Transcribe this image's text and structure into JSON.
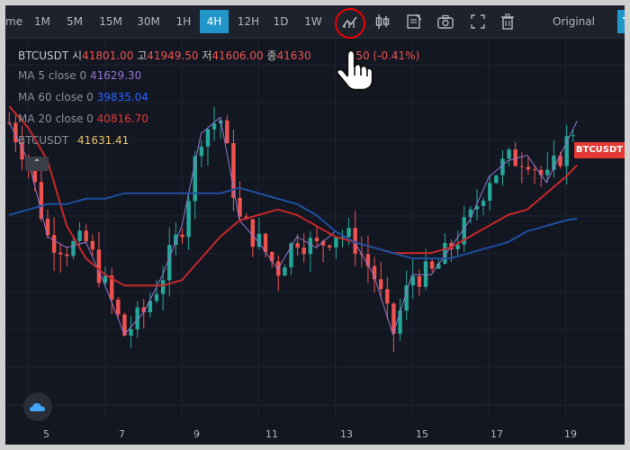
{
  "toolbar": {
    "partial_left": "me",
    "intervals": [
      "1M",
      "5M",
      "15M",
      "30M",
      "1H",
      "4H",
      "12H",
      "1D",
      "1W"
    ],
    "active_interval": "4H",
    "icons": [
      "indicators-icon",
      "candle-style-icon",
      "note-icon",
      "camera-icon",
      "fullscreen-icon",
      "trash-icon"
    ],
    "original_label": "Original",
    "trade_label": "Tra"
  },
  "legend": {
    "symbol": "BTCUSDT",
    "open_label": "시",
    "open": "41801.00",
    "high_label": "고",
    "high": "41949.50",
    "low_label": "저",
    "low": "41606.00",
    "close_label": "종",
    "close": "41630",
    "change": ".50 (-0.41%)",
    "ma5_label": "MA 5 close 0",
    "ma5_value": "41629.30",
    "ma60_label": "MA 60 close 0",
    "ma60_value": "39835.04",
    "ma20_label": "MA 20 close 0",
    "ma20_value": "40816.70",
    "price_label": "BTCUSDT",
    "price_value": "41631.41",
    "ma5_color": "#9575cd",
    "ma60_color": "#1e4fa0",
    "ma20_color": "#c62828"
  },
  "badge": {
    "text": "BTCUSDT",
    "color": "#e53935"
  },
  "x_axis": [
    "5",
    "7",
    "9",
    "11",
    "13",
    "15",
    "17",
    "19"
  ],
  "chart_data": {
    "type": "line",
    "title": "",
    "xlabel": "",
    "ylabel": "",
    "x": [
      4.5,
      5.0,
      5.5,
      6.0,
      6.5,
      7.0,
      7.5,
      8.0,
      8.5,
      9.0,
      9.5,
      10.0,
      10.5,
      11.0,
      11.5,
      12.0,
      12.5,
      13.0,
      13.5,
      14.0,
      14.5,
      15.0,
      15.5,
      16.0,
      16.5,
      17.0,
      17.5,
      18.0,
      18.5,
      19.0,
      19.3
    ],
    "series": [
      {
        "name": "MA 5 close 0",
        "values": [
          41600,
          40900,
          39500,
          39300,
          39400,
          38600,
          37700,
          38100,
          38800,
          39700,
          41400,
          41700,
          39800,
          39400,
          38900,
          39500,
          39300,
          39600,
          39400,
          38800,
          37700,
          38800,
          38800,
          39300,
          39800,
          40600,
          40900,
          41000,
          40500,
          41200,
          41630
        ]
      },
      {
        "name": "MA 20 close 0",
        "values": [
          41900,
          41500,
          40900,
          39700,
          39100,
          38800,
          38600,
          38600,
          38600,
          38700,
          39100,
          39500,
          39800,
          39900,
          40000,
          39900,
          39700,
          39500,
          39400,
          39300,
          39200,
          39200,
          39200,
          39300,
          39500,
          39700,
          39900,
          40000,
          40300,
          40600,
          40817
        ]
      },
      {
        "name": "MA 60 close 0",
        "values": [
          39900,
          40000,
          40100,
          40100,
          40200,
          40200,
          40300,
          40300,
          40300,
          40300,
          40300,
          40300,
          40400,
          40300,
          40200,
          40100,
          39900,
          39600,
          39400,
          39300,
          39200,
          39100,
          39100,
          39100,
          39200,
          39300,
          39400,
          39600,
          39700,
          39800,
          39835
        ]
      }
    ],
    "ylim": [
      36500,
      42500
    ]
  }
}
